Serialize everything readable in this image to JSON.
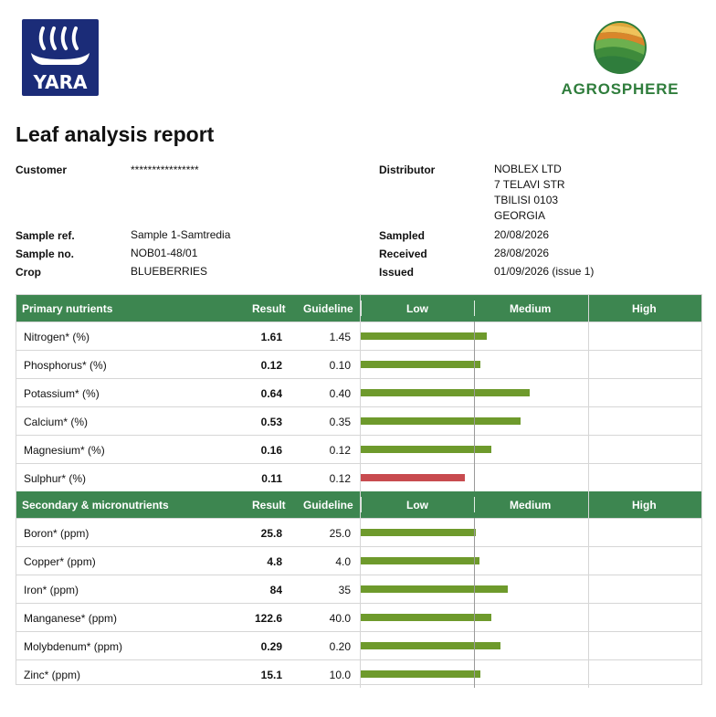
{
  "logos": {
    "left_text": "YARA",
    "right_text": "AGROSPHERE",
    "yara_color": "#1b2c78",
    "agro_color": "#2f7d3c",
    "agro_accent": "#e0a63a"
  },
  "report": {
    "title": "Leaf analysis report",
    "customer_label": "Customer",
    "customer_value": "****************",
    "distributor_label": "Distributor",
    "distributor_lines": [
      "NOBLEX LTD",
      "7 TELAVI STR",
      "TBILISI 0103",
      "GEORGIA"
    ],
    "sample_ref_label": "Sample ref.",
    "sample_ref_value": "Sample 1-Samtredia",
    "sample_no_label": "Sample no.",
    "sample_no_value": "NOB01-48/01",
    "crop_label": "Crop",
    "crop_value": "BLUEBERRIES",
    "sampled_label": "Sampled",
    "sampled_value": "20/08/2026",
    "received_label": "Received",
    "received_value": "28/08/2026",
    "issued_label": "Issued",
    "issued_value": "01/09/2026 (issue 1)"
  },
  "table": {
    "columns": {
      "result": "Result",
      "guideline": "Guideline",
      "low": "Low",
      "medium": "Medium",
      "high": "High"
    },
    "colors": {
      "header_bg": "#3d8650",
      "bar_ok": "#6e9a2c",
      "bar_low": "#c84b4f"
    },
    "sections": [
      {
        "title": "Primary nutrients",
        "rows": [
          {
            "name": "Nitrogen* (%)",
            "result": "1.61",
            "guideline": "1.45",
            "level": 1.11,
            "status": "ok"
          },
          {
            "name": "Phosphorus* (%)",
            "result": "0.12",
            "guideline": "0.10",
            "level": 1.06,
            "status": "ok"
          },
          {
            "name": "Potassium* (%)",
            "result": "0.64",
            "guideline": "0.40",
            "level": 1.49,
            "status": "ok"
          },
          {
            "name": "Calcium* (%)",
            "result": "0.53",
            "guideline": "0.35",
            "level": 1.41,
            "status": "ok"
          },
          {
            "name": "Magnesium* (%)",
            "result": "0.16",
            "guideline": "0.12",
            "level": 1.15,
            "status": "ok"
          },
          {
            "name": "Sulphur* (%)",
            "result": "0.11",
            "guideline": "0.12",
            "level": 0.92,
            "status": "low"
          }
        ]
      },
      {
        "title": "Secondary & micronutrients",
        "rows": [
          {
            "name": "Boron* (ppm)",
            "result": "25.8",
            "guideline": "25.0",
            "level": 1.02,
            "status": "ok"
          },
          {
            "name": "Copper* (ppm)",
            "result": "4.8",
            "guideline": "4.0",
            "level": 1.05,
            "status": "ok"
          },
          {
            "name": "Iron* (ppm)",
            "result": "84",
            "guideline": "35",
            "level": 1.3,
            "status": "ok"
          },
          {
            "name": "Manganese* (ppm)",
            "result": "122.6",
            "guideline": "40.0",
            "level": 1.15,
            "status": "ok"
          },
          {
            "name": "Molybdenum* (ppm)",
            "result": "0.29",
            "guideline": "0.20",
            "level": 1.23,
            "status": "ok"
          },
          {
            "name": "Zinc* (ppm)",
            "result": "15.1",
            "guideline": "10.0",
            "level": 1.06,
            "status": "ok"
          }
        ]
      }
    ]
  }
}
